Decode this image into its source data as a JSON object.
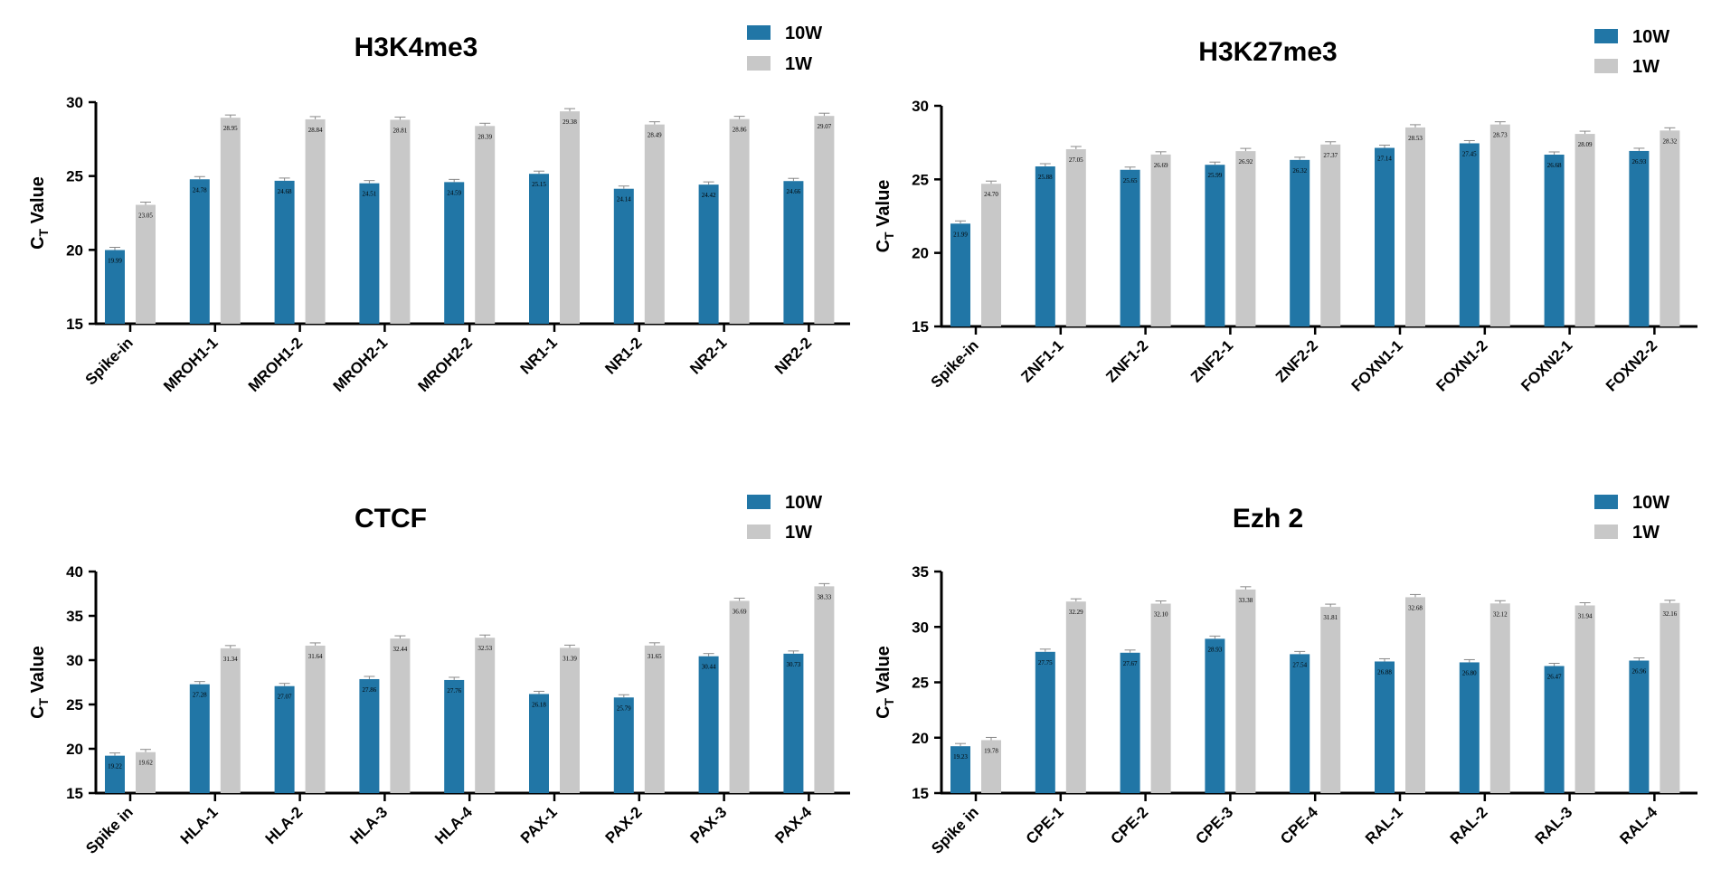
{
  "colors": {
    "series_10w": "#2176a6",
    "series_1w": "#c8c8c8",
    "axis": "#000000",
    "error": "#888888"
  },
  "ylabel": {
    "main": "C",
    "sub": "T",
    "rest": " Value"
  },
  "chart_data": [
    {
      "type": "bar",
      "title": "H3K4me3",
      "categories": [
        "Spike-in",
        "MROH1-1",
        "MROH1-2",
        "MROH2-1",
        "MROH2-2",
        "NR1-1",
        "NR1-2",
        "NR2-1",
        "NR2-2"
      ],
      "ylim": [
        15,
        30
      ],
      "yticks": [
        15,
        20,
        25,
        30
      ],
      "legend_position": "top-right",
      "series": [
        {
          "name": "10W",
          "values": [
            19.99,
            24.78,
            24.68,
            24.51,
            24.59,
            25.15,
            24.14,
            24.42,
            24.66
          ],
          "labels": [
            "19.99",
            "24.78",
            "24.68",
            "24.51",
            "24.59",
            "25.15",
            "24.14",
            "24.42",
            "24.66"
          ]
        },
        {
          "name": "1W",
          "values": [
            23.05,
            28.95,
            28.84,
            28.81,
            28.39,
            29.38,
            28.49,
            28.86,
            29.07
          ],
          "labels": [
            "23.05",
            "28.95",
            "28.84",
            "28.81",
            "28.39",
            "29.38",
            "28.49",
            "28.86",
            "29.07"
          ]
        }
      ]
    },
    {
      "type": "bar",
      "title": "H3K27me3",
      "categories": [
        "Spike-in",
        "ZNF1-1",
        "ZNF1-2",
        "ZNF2-1",
        "ZNF2-2",
        "FOXN1-1",
        "FOXN1-2",
        "FOXN2-1",
        "FOXN2-2"
      ],
      "ylim": [
        15,
        30
      ],
      "yticks": [
        15,
        20,
        25,
        30
      ],
      "legend_position": "top-right",
      "series": [
        {
          "name": "10W",
          "values": [
            21.99,
            25.88,
            25.65,
            25.99,
            26.32,
            27.14,
            27.45,
            26.68,
            26.93
          ],
          "labels": [
            "21.99",
            "25.88",
            "25.65",
            "25.99",
            "26.32",
            "27.14",
            "27.45",
            "26.68",
            "26.93"
          ]
        },
        {
          "name": "1W",
          "values": [
            24.7,
            27.05,
            26.69,
            26.92,
            27.37,
            28.53,
            28.73,
            28.09,
            28.32
          ],
          "labels": [
            "24.70",
            "27.05",
            "26.69",
            "26.92",
            "27.37",
            "28.53",
            "28.73",
            "28.09",
            "28.32"
          ]
        }
      ]
    },
    {
      "type": "bar",
      "title": "CTCF",
      "categories": [
        "Spike in",
        "HLA-1",
        "HLA-2",
        "HLA-3",
        "HLA-4",
        "PAX-1",
        "PAX-2",
        "PAX-3",
        "PAX-4"
      ],
      "ylim": [
        15,
        40
      ],
      "yticks": [
        15,
        20,
        25,
        30,
        35,
        40
      ],
      "legend_position": "top-right",
      "series": [
        {
          "name": "10W",
          "values": [
            19.22,
            27.28,
            27.07,
            27.86,
            27.76,
            26.18,
            25.79,
            30.44,
            30.73
          ],
          "labels": [
            "19.22",
            "27.28",
            "27.07",
            "27.86",
            "27.76",
            "26.18",
            "25.79",
            "30.44",
            "30.73"
          ]
        },
        {
          "name": "1W",
          "values": [
            19.62,
            31.34,
            31.64,
            32.44,
            32.53,
            31.39,
            31.65,
            36.69,
            38.33
          ],
          "labels": [
            "19.62",
            "31.34",
            "31.64",
            "32.44",
            "32.53",
            "31.39",
            "31.65",
            "36.69",
            "38.33"
          ]
        }
      ]
    },
    {
      "type": "bar",
      "title": "Ezh 2",
      "categories": [
        "Spike in",
        "CPE-1",
        "CPE-2",
        "CPE-3",
        "CPE-4",
        "RAL-1",
        "RAL-2",
        "RAL-3",
        "RAL-4"
      ],
      "ylim": [
        15,
        35
      ],
      "yticks": [
        15,
        20,
        25,
        30,
        35
      ],
      "legend_position": "top-right",
      "series": [
        {
          "name": "10W",
          "values": [
            19.23,
            27.75,
            27.67,
            28.93,
            27.54,
            26.88,
            26.8,
            26.47,
            26.96
          ],
          "labels": [
            "19.23",
            "27.75",
            "27.67",
            "28.93",
            "27.54",
            "26.88",
            "26.80",
            "26.47",
            "26.96"
          ]
        },
        {
          "name": "1W",
          "values": [
            19.78,
            32.29,
            32.1,
            33.38,
            31.81,
            32.68,
            32.12,
            31.94,
            32.16
          ],
          "labels": [
            "19.78",
            "32.29",
            "32.10",
            "33.38",
            "31.81",
            "32.68",
            "32.12",
            "31.94",
            "32.16"
          ]
        }
      ]
    }
  ]
}
